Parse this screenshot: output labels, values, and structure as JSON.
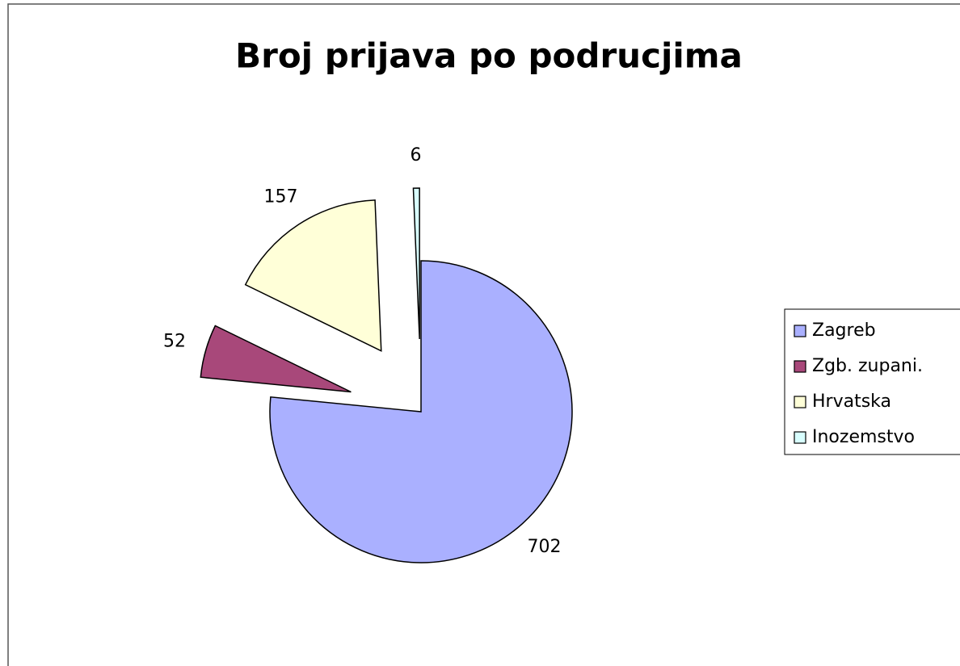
{
  "chart_data": {
    "type": "pie",
    "title": "Broj prijava po podrucjima",
    "categories": [
      "Zagreb",
      "Zgb. zupani.",
      "Hrvatska",
      "Inozemstvo"
    ],
    "values": [
      702,
      52,
      157,
      6
    ],
    "colors": [
      "#aab0ff",
      "#a8487a",
      "#ffffd8",
      "#d8ffff"
    ],
    "legend": "right"
  }
}
